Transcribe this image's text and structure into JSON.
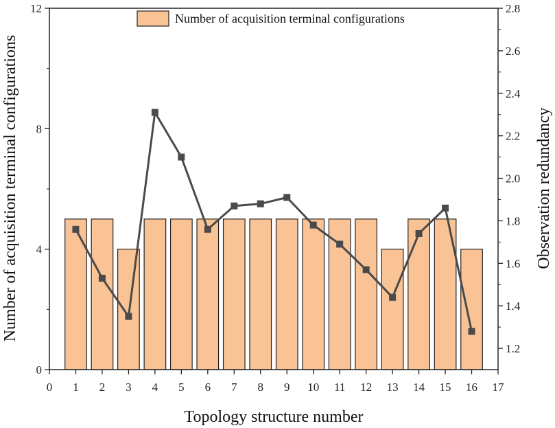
{
  "chart_data": {
    "type": "bar",
    "xlabel": "Topology structure number",
    "ylabel_left": "Number of acquisition terminal configurations",
    "ylabel_right": "Observation redundancy",
    "x_ticks": [
      "0",
      "1",
      "2",
      "3",
      "4",
      "5",
      "6",
      "7",
      "8",
      "9",
      "10",
      "11",
      "12",
      "13",
      "14",
      "15",
      "16",
      "17"
    ],
    "xlim": [
      0,
      17
    ],
    "ylim_left": [
      0,
      12
    ],
    "y_ticks_left": [
      "0",
      "4",
      "8",
      "12"
    ],
    "y_tick_values_left": [
      0,
      4,
      8,
      12
    ],
    "ylim_right": [
      1.1,
      2.8
    ],
    "y_ticks_right": [
      "1.2",
      "1.4",
      "1.6",
      "1.8",
      "2.0",
      "2.2",
      "2.4",
      "2.6",
      "2.8"
    ],
    "y_tick_values_right": [
      1.2,
      1.4,
      1.6,
      1.8,
      2.0,
      2.2,
      2.4,
      2.6,
      2.8
    ],
    "grid": false,
    "legend_position": "top",
    "categories": [
      1,
      2,
      3,
      4,
      5,
      6,
      7,
      8,
      9,
      10,
      11,
      12,
      13,
      14,
      15,
      16
    ],
    "series": [
      {
        "name": "Number of acquisition terminal configurations",
        "type": "bar",
        "axis": "left",
        "color": "#FAC395",
        "values": [
          5,
          5,
          4,
          5,
          5,
          5,
          5,
          5,
          5,
          5,
          5,
          5,
          4,
          5,
          5,
          4
        ]
      },
      {
        "type": "line",
        "axis": "right",
        "color": "#4a4a4a",
        "values": [
          1.76,
          1.53,
          1.35,
          2.31,
          2.1,
          1.76,
          1.87,
          1.88,
          1.91,
          1.78,
          1.69,
          1.57,
          1.44,
          1.74,
          1.86,
          1.28
        ]
      }
    ]
  }
}
